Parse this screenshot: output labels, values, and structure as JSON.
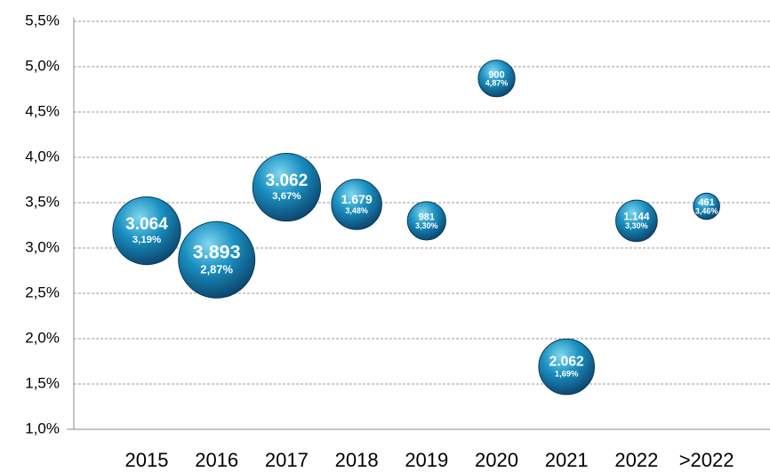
{
  "chart_data": {
    "type": "bubble",
    "categories": [
      "2015",
      "2016",
      "2017",
      "2018",
      "2019",
      "2020",
      "2021",
      "2022",
      ">2022"
    ],
    "series": [
      {
        "color": "#1a8fc0",
        "values": [
          3.19,
          2.87,
          3.67,
          3.48,
          3.3,
          4.87,
          1.69,
          3.3,
          3.46
        ],
        "value_labels": [
          "3,19%",
          "2,87%",
          "3,67%",
          "3,48%",
          "3,30%",
          "4,87%",
          "1,69%",
          "3,30%",
          "3,46%"
        ],
        "sizes": [
          3064,
          3893,
          3062,
          1679,
          981,
          900,
          2062,
          1144,
          461
        ],
        "size_labels": [
          "3.064",
          "3.893",
          "3.062",
          "1.679",
          "981",
          "900",
          "2.062",
          "1.144",
          "461"
        ]
      }
    ],
    "ylim": [
      1.0,
      5.5
    ],
    "yticks": [
      {
        "value": 1.0,
        "label": "1,0%"
      },
      {
        "value": 1.5,
        "label": "1,5%"
      },
      {
        "value": 2.0,
        "label": "2,0%"
      },
      {
        "value": 2.5,
        "label": "2,5%"
      },
      {
        "value": 3.0,
        "label": "3,0%"
      },
      {
        "value": 3.5,
        "label": "3,5%"
      },
      {
        "value": 4.0,
        "label": "4,0%"
      },
      {
        "value": 4.5,
        "label": "4,5%"
      },
      {
        "value": 5.0,
        "label": "5,0%"
      },
      {
        "value": 5.5,
        "label": "5,5%"
      }
    ],
    "grid": true
  }
}
